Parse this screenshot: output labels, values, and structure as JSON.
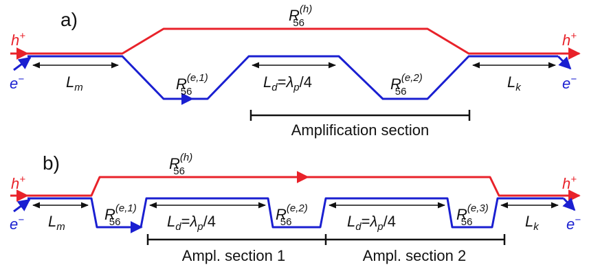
{
  "panel_a": {
    "tag": "a)",
    "hole": {
      "sym": "h",
      "sup": "+"
    },
    "electron": {
      "sym": "e",
      "sup": "−"
    },
    "hole_label": {
      "base": "R",
      "sub": "56",
      "sup": "(h)"
    },
    "e1_label": {
      "base": "R",
      "sub": "56",
      "sup": "(e,1)"
    },
    "e2_label": {
      "base": "R",
      "sub": "56",
      "sup": "(e,2)"
    },
    "lm": {
      "base": "L",
      "sub": "m"
    },
    "ld": {
      "base": "L",
      "sub": "d",
      "eq": "=",
      "lam": "λ",
      "lamsub": "p",
      "frac": "/4"
    },
    "lk": {
      "base": "L",
      "sub": "k"
    },
    "section": "Amplification section"
  },
  "panel_b": {
    "tag": "b)",
    "hole": {
      "sym": "h",
      "sup": "+"
    },
    "electron": {
      "sym": "e",
      "sup": "−"
    },
    "hole_label": {
      "base": "R",
      "sub": "56",
      "sup": "(h)"
    },
    "e1_label": {
      "base": "R",
      "sub": "56",
      "sup": "(e,1)"
    },
    "e2_label": {
      "base": "R",
      "sub": "56",
      "sup": "(e,2)"
    },
    "e3_label": {
      "base": "R",
      "sub": "56",
      "sup": "(e,3)"
    },
    "lm": {
      "base": "L",
      "sub": "m"
    },
    "ld1": {
      "base": "L",
      "sub": "d",
      "eq": "=",
      "lam": "λ",
      "lamsub": "p",
      "frac": "/4"
    },
    "ld2": {
      "base": "L",
      "sub": "d",
      "eq": "=",
      "lam": "λ",
      "lamsub": "p",
      "frac": "/4"
    },
    "lk": {
      "base": "L",
      "sub": "k"
    },
    "section1": "Ampl. section 1",
    "section2": "Ampl. section 2"
  },
  "colors": {
    "hole": "#e8222a",
    "electron": "#1a1fd1",
    "text": "#111111"
  }
}
